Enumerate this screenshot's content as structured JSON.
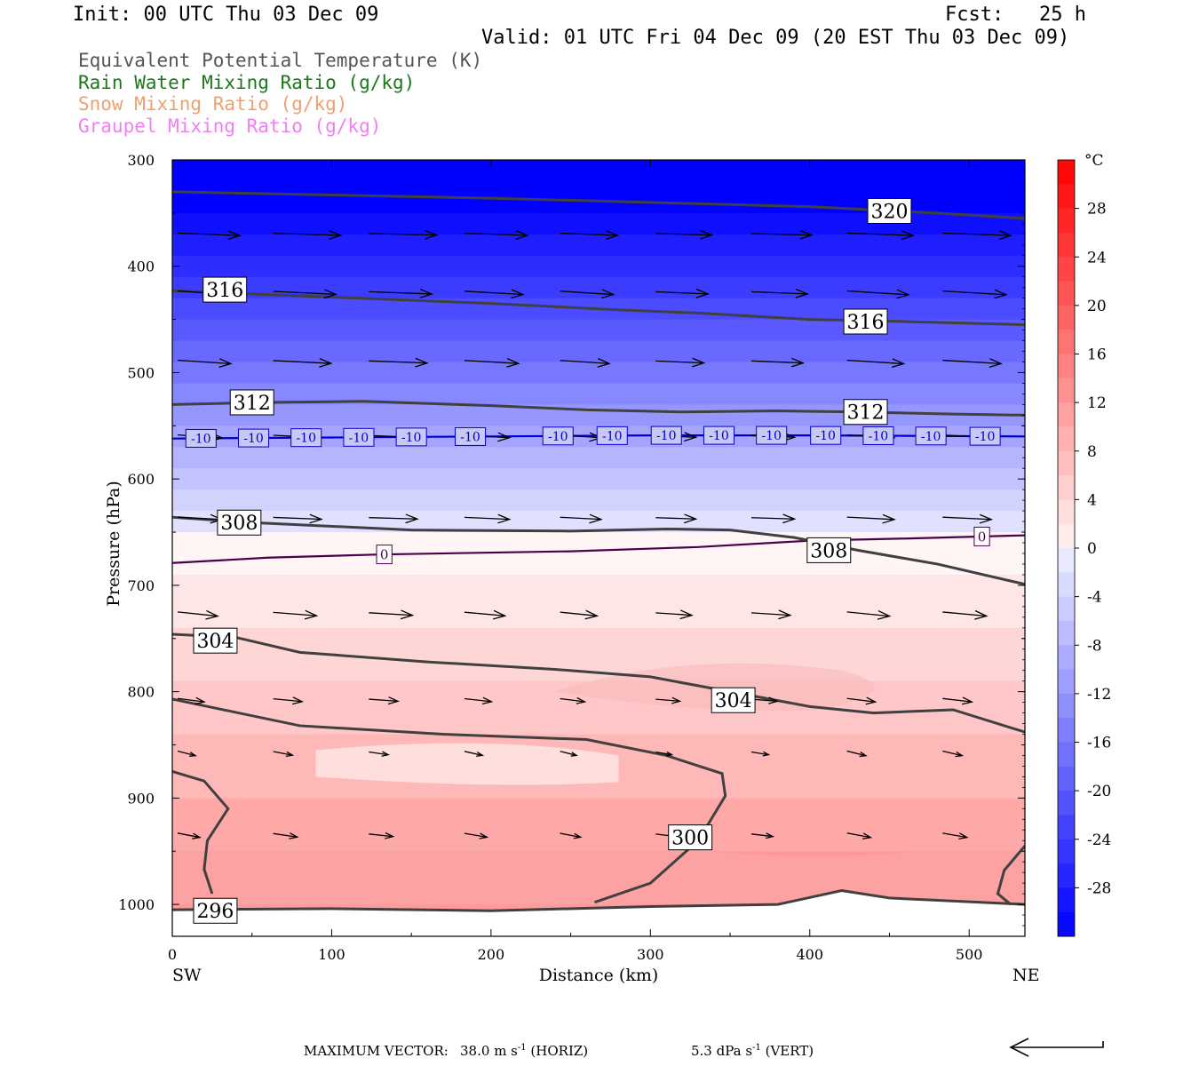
{
  "header": {
    "init": "Init: 00 UTC Thu 03 Dec 09",
    "fcst": "Fcst:   25 h",
    "valid": "Valid: 01 UTC Fri 04 Dec 09 (20 EST Thu 03 Dec 09)"
  },
  "legend": [
    {
      "label": "Equivalent Potential Temperature (K)",
      "color": "#555555"
    },
    {
      "label": "Rain Water Mixing Ratio (g/kg)",
      "color": "#1a7a1a"
    },
    {
      "label": "Snow Mixing Ratio (g/kg)",
      "color": "#f0a070"
    },
    {
      "label": "Graupel Mixing Ratio (g/kg)",
      "color": "#f080f0"
    }
  ],
  "footer": {
    "max_vector_label": "MAXIMUM VECTOR:",
    "horiz_value": "38.0",
    "horiz_unit": "m s",
    "horiz_exp": "-1",
    "horiz_tag": "(HORIZ)",
    "vert_value": "5.3",
    "vert_unit": "dPa s",
    "vert_exp": "-1",
    "vert_tag": "(VERT)"
  },
  "chart_data": {
    "type": "cross-section contour",
    "xlabel": "Distance (km)",
    "ylabel": "Pressure (hPa)",
    "xlim": [
      0,
      535
    ],
    "ylim": [
      1030,
      300
    ],
    "x_ticks": [
      0,
      100,
      200,
      300,
      400,
      500
    ],
    "y_ticks": [
      300,
      400,
      500,
      600,
      700,
      800,
      900,
      1000
    ],
    "x_end_labels": {
      "left": "SW",
      "right": "NE"
    },
    "colorbar": {
      "unit": "°C",
      "range": [
        -32,
        32
      ],
      "tick_labels": [
        "28",
        "24",
        "20",
        "16",
        "12",
        "8",
        "4",
        "0",
        "-4",
        "-8",
        "-12",
        "-16",
        "-20",
        "-24",
        "-28"
      ],
      "tick_values": [
        28,
        24,
        20,
        16,
        12,
        8,
        4,
        0,
        -4,
        -8,
        -12,
        -16,
        -20,
        -24,
        -28
      ]
    },
    "isotherms": [
      {
        "label": "-10",
        "color": "#0000cc",
        "points": [
          [
            0,
            562
          ],
          [
            100,
            561
          ],
          [
            200,
            560
          ],
          [
            300,
            559
          ],
          [
            400,
            559
          ],
          [
            535,
            560
          ]
        ],
        "label_x": [
          18,
          51,
          84,
          117,
          150,
          187,
          242,
          276,
          310,
          343,
          376,
          410,
          443,
          476,
          510
        ]
      },
      {
        "label": "0",
        "color": "#4b004b",
        "points": [
          [
            0,
            679
          ],
          [
            60,
            674
          ],
          [
            130,
            671
          ],
          [
            250,
            668
          ],
          [
            330,
            664
          ],
          [
            400,
            658
          ],
          [
            460,
            656
          ],
          [
            535,
            653
          ]
        ],
        "label_x": [
          133,
          508
        ]
      }
    ],
    "theta_e_contours": [
      {
        "label": "320",
        "points": [
          [
            0,
            330
          ],
          [
            100,
            333
          ],
          [
            200,
            336
          ],
          [
            300,
            340
          ],
          [
            400,
            344
          ],
          [
            480,
            350
          ],
          [
            535,
            355
          ]
        ],
        "label_at": [
          [
            450,
            348
          ]
        ]
      },
      {
        "label": "316",
        "points": [
          [
            0,
            423
          ],
          [
            100,
            429
          ],
          [
            200,
            435
          ],
          [
            280,
            441
          ],
          [
            330,
            444
          ],
          [
            400,
            450
          ],
          [
            460,
            452
          ],
          [
            535,
            455
          ]
        ],
        "label_at": [
          [
            33,
            422
          ],
          [
            435,
            452
          ]
        ]
      },
      {
        "label": "312",
        "points": [
          [
            0,
            530
          ],
          [
            60,
            528
          ],
          [
            120,
            527
          ],
          [
            200,
            531
          ],
          [
            260,
            535
          ],
          [
            320,
            537
          ],
          [
            380,
            536
          ],
          [
            430,
            537
          ],
          [
            490,
            539
          ],
          [
            535,
            540
          ]
        ],
        "label_at": [
          [
            50,
            528
          ],
          [
            435,
            537
          ]
        ]
      },
      {
        "label": "308",
        "points": [
          [
            0,
            636
          ],
          [
            50,
            641
          ],
          [
            150,
            648
          ],
          [
            250,
            649
          ],
          [
            310,
            647
          ],
          [
            350,
            648
          ],
          [
            390,
            655
          ],
          [
            430,
            667
          ],
          [
            480,
            680
          ],
          [
            535,
            699
          ]
        ],
        "label_at": [
          [
            42,
            641
          ],
          [
            412,
            667
          ]
        ]
      },
      {
        "label": "304",
        "points": [
          [
            0,
            746
          ],
          [
            40,
            749
          ],
          [
            80,
            763
          ],
          [
            160,
            772
          ],
          [
            240,
            779
          ],
          [
            300,
            786
          ],
          [
            350,
            800
          ],
          [
            400,
            814
          ],
          [
            440,
            820
          ],
          [
            490,
            817
          ],
          [
            535,
            838
          ]
        ],
        "label_at": [
          [
            27,
            752
          ],
          [
            352,
            808
          ]
        ]
      },
      {
        "label": "300",
        "points": [
          [
            0,
            807
          ],
          [
            80,
            832
          ],
          [
            170,
            840
          ],
          [
            260,
            845
          ],
          [
            310,
            860
          ],
          [
            345,
            877
          ],
          [
            347,
            898
          ],
          [
            330,
            940
          ],
          [
            300,
            980
          ],
          [
            265,
            998
          ]
        ],
        "label_at": [
          [
            325,
            937
          ]
        ]
      },
      {
        "label": "296",
        "points": [
          [
            0,
            1005
          ],
          [
            100,
            1004
          ],
          [
            200,
            1006
          ],
          [
            300,
            1002
          ],
          [
            380,
            1000
          ],
          [
            420,
            987
          ],
          [
            450,
            994
          ],
          [
            535,
            1000
          ]
        ],
        "label_at": [
          [
            27,
            1006
          ]
        ]
      },
      {
        "label": "",
        "points": [
          [
            0,
            875
          ],
          [
            20,
            884
          ],
          [
            35,
            910
          ],
          [
            22,
            940
          ],
          [
            20,
            967
          ],
          [
            25,
            990
          ]
        ],
        "label_at": []
      },
      {
        "label": "",
        "points": [
          [
            535,
            945
          ],
          [
            522,
            968
          ],
          [
            518,
            990
          ],
          [
            526,
            1000
          ]
        ],
        "label_at": []
      }
    ],
    "wind_vectors": {
      "levels": [
        370,
        425,
        490,
        560,
        637,
        727,
        808,
        858,
        935
      ],
      "x_positions": [
        0,
        60,
        120,
        180,
        240,
        300,
        360,
        420,
        480
      ],
      "u_scale_note": "arrow length relative to max vector 38.0 m/s"
    }
  }
}
